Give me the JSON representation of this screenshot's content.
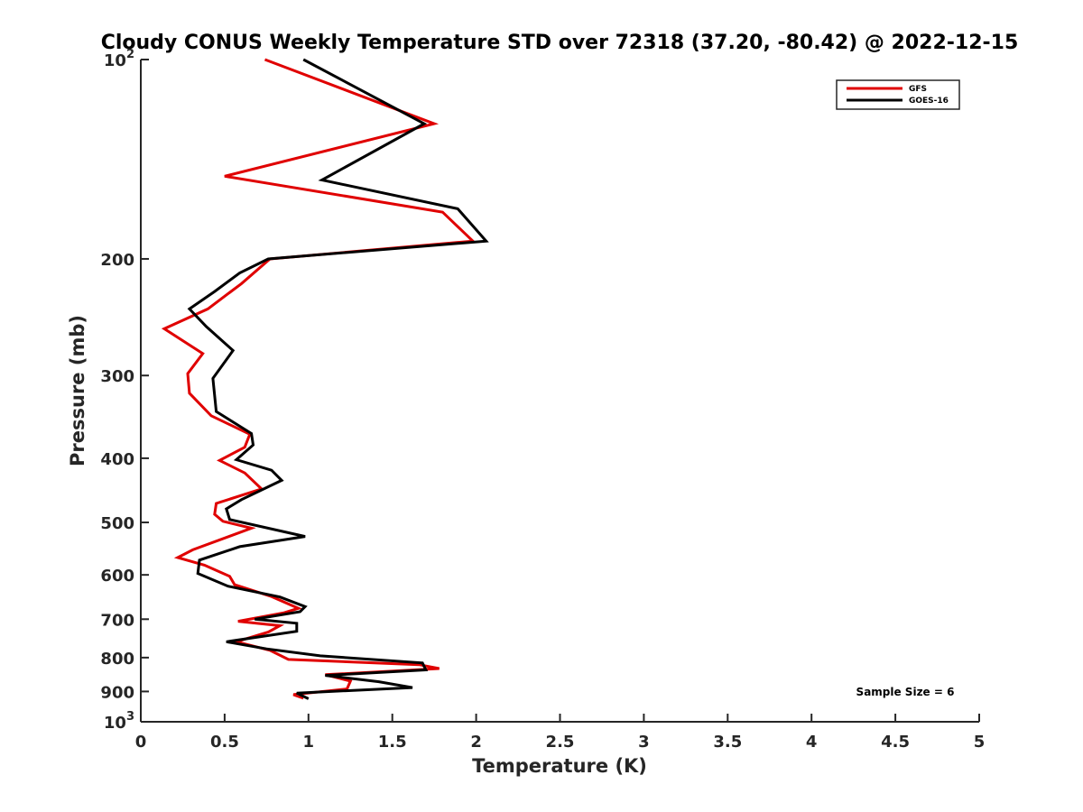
{
  "chart_data": {
    "type": "line",
    "title": "Cloudy CONUS Weekly Temperature STD over 72318 (37.20, -80.42) @ 2022-12-15",
    "xlabel": "Temperature (K)",
    "ylabel": "Pressure (mb)",
    "xlim": [
      0,
      5
    ],
    "ylim": [
      100,
      1000
    ],
    "yscale": "log",
    "y_reversed": true,
    "xticks": [
      0,
      0.5,
      1,
      1.5,
      2,
      2.5,
      3,
      3.5,
      4,
      4.5,
      5
    ],
    "xtick_labels": [
      "0",
      "0.5",
      "1",
      "1.5",
      "2",
      "2.5",
      "3",
      "3.5",
      "4",
      "4.5",
      "5"
    ],
    "yticks": [
      100,
      200,
      300,
      400,
      500,
      600,
      700,
      800,
      900,
      1000
    ],
    "ytick_labels": [
      {
        "base": "10",
        "exp": "2"
      },
      {
        "base": "200",
        "exp": ""
      },
      {
        "base": "300",
        "exp": ""
      },
      {
        "base": "400",
        "exp": ""
      },
      {
        "base": "500",
        "exp": ""
      },
      {
        "base": "600",
        "exp": ""
      },
      {
        "base": "700",
        "exp": ""
      },
      {
        "base": "800",
        "exp": ""
      },
      {
        "base": "900",
        "exp": ""
      },
      {
        "base": "10",
        "exp": "3"
      }
    ],
    "legend": {
      "position": "top-right"
    },
    "annotation": "Sample Size = 6",
    "series": [
      {
        "name": "GFS",
        "color": "#e00000",
        "points": [
          [
            0.74,
            100
          ],
          [
            1.75,
            125
          ],
          [
            0.5,
            150
          ],
          [
            1.8,
            170
          ],
          [
            1.98,
            188
          ],
          [
            0.77,
            200
          ],
          [
            0.6,
            218
          ],
          [
            0.4,
            238
          ],
          [
            0.14,
            255
          ],
          [
            0.37,
            278
          ],
          [
            0.28,
            298
          ],
          [
            0.29,
            319
          ],
          [
            0.42,
            345
          ],
          [
            0.65,
            368
          ],
          [
            0.62,
            385
          ],
          [
            0.47,
            403
          ],
          [
            0.62,
            421
          ],
          [
            0.72,
            445
          ],
          [
            0.45,
            468
          ],
          [
            0.44,
            486
          ],
          [
            0.49,
            498
          ],
          [
            0.66,
            510
          ],
          [
            0.31,
            550
          ],
          [
            0.22,
            565
          ],
          [
            0.38,
            580
          ],
          [
            0.53,
            603
          ],
          [
            0.56,
            621
          ],
          [
            0.78,
            647
          ],
          [
            0.94,
            674
          ],
          [
            0.85,
            685
          ],
          [
            0.58,
            705
          ],
          [
            0.83,
            716
          ],
          [
            0.76,
            732
          ],
          [
            0.57,
            757
          ],
          [
            0.77,
            780
          ],
          [
            0.88,
            805
          ],
          [
            1.66,
            820
          ],
          [
            1.78,
            831
          ],
          [
            1.1,
            849
          ],
          [
            1.25,
            868
          ],
          [
            1.23,
            892
          ],
          [
            0.91,
            910
          ],
          [
            0.97,
            921
          ]
        ]
      },
      {
        "name": "GOES-16",
        "color": "#000000",
        "points": [
          [
            0.97,
            100
          ],
          [
            1.69,
            125
          ],
          [
            1.08,
            152
          ],
          [
            1.89,
            168
          ],
          [
            2.06,
            188
          ],
          [
            0.76,
            200
          ],
          [
            0.59,
            210
          ],
          [
            0.44,
            224
          ],
          [
            0.29,
            238
          ],
          [
            0.39,
            253
          ],
          [
            0.55,
            275
          ],
          [
            0.43,
            303
          ],
          [
            0.45,
            340
          ],
          [
            0.66,
            367
          ],
          [
            0.67,
            382
          ],
          [
            0.57,
            402
          ],
          [
            0.78,
            417
          ],
          [
            0.84,
            432
          ],
          [
            0.6,
            462
          ],
          [
            0.51,
            477
          ],
          [
            0.53,
            495
          ],
          [
            0.98,
            525
          ],
          [
            0.59,
            544
          ],
          [
            0.35,
            570
          ],
          [
            0.34,
            597
          ],
          [
            0.52,
            624
          ],
          [
            0.83,
            648
          ],
          [
            0.98,
            670
          ],
          [
            0.95,
            682
          ],
          [
            0.68,
            700
          ],
          [
            0.93,
            710
          ],
          [
            0.93,
            730
          ],
          [
            0.51,
            757
          ],
          [
            0.75,
            776
          ],
          [
            1.07,
            795
          ],
          [
            1.68,
            815
          ],
          [
            1.7,
            835
          ],
          [
            1.1,
            851
          ],
          [
            1.42,
            870
          ],
          [
            1.62,
            888
          ],
          [
            0.93,
            905
          ],
          [
            1.0,
            923
          ]
        ]
      }
    ]
  }
}
